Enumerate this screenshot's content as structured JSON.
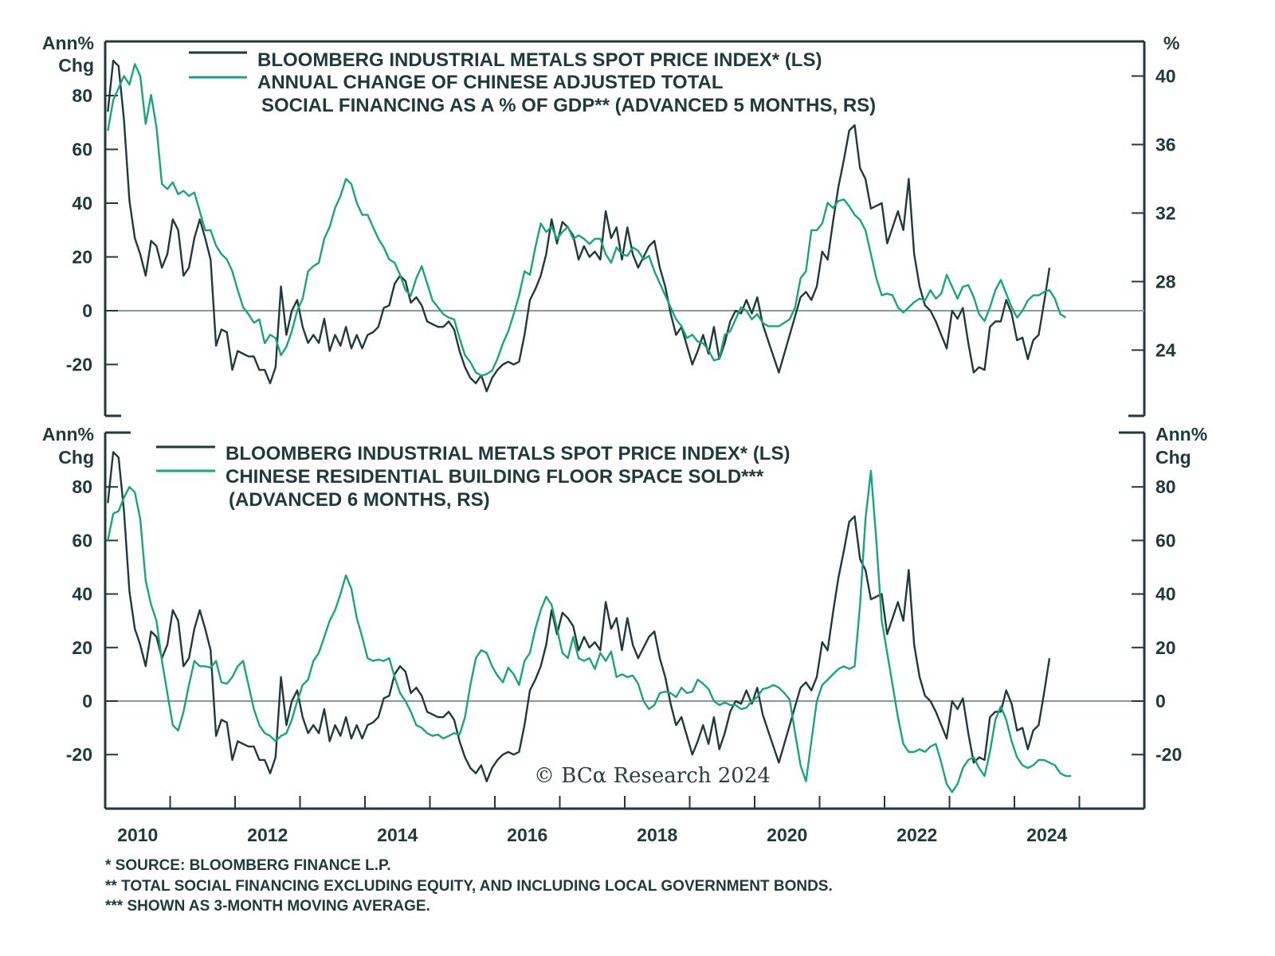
{
  "colors": {
    "metals": "#1f3a3d",
    "green": "#1ba37c",
    "zero_line": "#8a9a9a",
    "axis": "#1f3a3d"
  },
  "chart_data": [
    {
      "type": "line",
      "left_axis_label": [
        "Ann%",
        "Chg"
      ],
      "right_axis_label": [
        "%"
      ],
      "left_ylim": [
        -35,
        100
      ],
      "right_ylim": [
        21.8,
        42.6
      ],
      "left_ticks": [
        "80",
        "60",
        "40",
        "20",
        "0",
        "-20"
      ],
      "right_ticks": [
        "40",
        "36",
        "32",
        "28",
        "24"
      ],
      "legend": [
        [
          "BLOOMBERG INDUSTRIAL METALS SPOT PRICE INDEX* (LS)"
        ],
        [
          "ANNUAL CHANGE OF CHINESE ADJUSTED TOTAL",
          " SOCIAL FINANCING AS A % OF GDP** (ADVANCED 5 MONTHS, RS)"
        ]
      ],
      "legend_placement": "top",
      "zero_line": true,
      "series": [
        {
          "name": "BLOOMBERG INDUSTRIAL METALS SPOT PRICE INDEX* (LS)",
          "axis": "left",
          "start": "2010-01",
          "freq": "monthly",
          "values": [
            74,
            93,
            91,
            71,
            41,
            27,
            21,
            13,
            26,
            24,
            16,
            21,
            34,
            30,
            13,
            16,
            27,
            34,
            27,
            19,
            -13,
            -7,
            -8,
            -22,
            -15,
            -16,
            -17,
            -17,
            -22,
            -22,
            -27,
            -21,
            9,
            -9,
            0,
            4,
            -6,
            -12,
            -9,
            -12,
            -3,
            -15,
            -9,
            -13,
            -6,
            -14,
            -9,
            -14,
            -9,
            -8,
            -6,
            1,
            2,
            10,
            13,
            11,
            3,
            5,
            2,
            -4,
            -5,
            -6,
            -6,
            -4,
            -7,
            -15,
            -21,
            -25,
            -27,
            -24,
            -30,
            -25,
            -22,
            -20,
            -19,
            -20,
            -19,
            -9,
            4,
            8,
            13,
            21,
            34,
            25,
            33,
            31,
            28,
            19,
            24,
            20,
            22,
            19,
            37,
            27,
            31,
            19,
            31,
            21,
            16,
            20,
            24,
            26,
            16,
            9,
            -1,
            -9,
            -6,
            -13,
            -20,
            -15,
            -9,
            -16,
            -6,
            -18,
            -12,
            -4,
            0,
            -1,
            4,
            -1,
            5,
            -5,
            -11,
            -17,
            -23,
            -16,
            -9,
            -2,
            5,
            7,
            4,
            9,
            22,
            19,
            33,
            46,
            56,
            67,
            69,
            53,
            49,
            38,
            39,
            40,
            25,
            31,
            37,
            30,
            49,
            21,
            9,
            2,
            0,
            -4,
            -9,
            -14,
            0,
            -3,
            1,
            -12,
            -23,
            -21,
            -22,
            -6,
            -4,
            -4,
            4,
            -1,
            -11,
            -10,
            -18,
            -11,
            -9,
            3,
            16
          ]
        },
        {
          "name": "ANNUAL CHANGE OF CHINESE ADJUSTED TOTAL SOCIAL FINANCING AS A % OF GDP** (ADVANCED 5 MONTHS, RS)",
          "axis": "right",
          "start": "2010-01",
          "freq": "monthly",
          "values": [
            36.8,
            38.6,
            39.3,
            40.0,
            39.5,
            40.7,
            40.0,
            37.2,
            38.9,
            37.0,
            33.7,
            33.4,
            33.8,
            33.1,
            33.3,
            33.0,
            33.2,
            32.1,
            31.0,
            31.0,
            30.1,
            29.6,
            29.3,
            28.6,
            27.5,
            26.5,
            26.1,
            25.6,
            25.8,
            24.4,
            24.9,
            24.7,
            23.7,
            24.2,
            25.1,
            26.3,
            27.0,
            28.6,
            28.9,
            29.1,
            30.5,
            31.2,
            32.3,
            33.0,
            34.0,
            33.7,
            32.6,
            31.9,
            31.9,
            31.2,
            30.5,
            30.0,
            29.3,
            29.1,
            28.4,
            27.5,
            27.2,
            28.2,
            28.9,
            27.9,
            26.9,
            26.5,
            26.1,
            25.9,
            25.8,
            24.7,
            23.7,
            23.3,
            22.7,
            22.5,
            22.6,
            22.8,
            23.5,
            24.4,
            25.1,
            26.1,
            27.2,
            28.6,
            28.4,
            30.0,
            31.4,
            30.9,
            31.2,
            30.5,
            30.9,
            31.2,
            30.5,
            30.7,
            30.5,
            30.2,
            30.5,
            30.5,
            29.6,
            29.1,
            30.0,
            29.6,
            29.5,
            30.0,
            29.8,
            29.3,
            29.5,
            28.6,
            27.9,
            27.2,
            26.5,
            25.8,
            25.4,
            24.7,
            24.9,
            24.5,
            24.4,
            24.0,
            23.4,
            23.5,
            24.9,
            25.1,
            25.8,
            26.5,
            26.3,
            25.8,
            26.1,
            25.6,
            25.4,
            25.4,
            25.4,
            25.6,
            25.8,
            26.5,
            28.2,
            28.6,
            31.0,
            31.0,
            31.4,
            32.6,
            32.3,
            32.7,
            32.8,
            32.4,
            31.9,
            31.6,
            31.0,
            29.6,
            28.2,
            27.2,
            27.3,
            27.2,
            26.5,
            26.2,
            26.5,
            26.8,
            27.0,
            26.9,
            27.5,
            27.0,
            27.3,
            28.4,
            27.7,
            27.0,
            27.7,
            27.8,
            27.1,
            26.1,
            25.7,
            26.5,
            27.5,
            28.1,
            27.3,
            26.5,
            25.9,
            26.3,
            26.9,
            27.2,
            27.2,
            27.4,
            27.5,
            27.0,
            26.1,
            25.9
          ]
        }
      ]
    },
    {
      "type": "line",
      "left_axis_label": [
        "Ann%",
        "Chg"
      ],
      "right_axis_label": [
        "Ann%",
        "Chg"
      ],
      "left_ylim": [
        -35,
        100
      ],
      "right_ylim": [
        -35,
        100
      ],
      "left_ticks": [
        "80",
        "60",
        "40",
        "20",
        "0",
        "-20"
      ],
      "right_ticks": [
        "80",
        "60",
        "40",
        "20",
        "0",
        "-20"
      ],
      "legend": [
        [
          "BLOOMBERG INDUSTRIAL METALS SPOT PRICE INDEX* (LS)"
        ],
        [
          "CHINESE RESIDENTIAL BUILDING FLOOR SPACE SOLD***",
          "(ADVANCED 6 MONTHS, RS)"
        ]
      ],
      "legend_placement": "top",
      "zero_line": true,
      "x_tick_labels": [
        "2010",
        "2012",
        "2014",
        "2016",
        "2018",
        "2020",
        "2022",
        "2024"
      ],
      "xlim": [
        2010,
        2026
      ],
      "series": [
        {
          "name": "BLOOMBERG INDUSTRIAL METALS SPOT PRICE INDEX* (LS)",
          "axis": "left",
          "same_as": 0
        },
        {
          "name": "CHINESE RESIDENTIAL BUILDING FLOOR SPACE SOLD*** (ADVANCED 6 MONTHS, RS)",
          "axis": "right",
          "start": "2010-01",
          "freq": "monthly",
          "values": [
            60,
            70,
            71,
            76,
            80,
            78,
            68,
            45,
            36,
            30,
            15,
            3,
            -9,
            -11,
            -4,
            6,
            15,
            13,
            13,
            12.5,
            15,
            7,
            6.5,
            9,
            13,
            15,
            6,
            -3,
            -9,
            -12,
            -13,
            -15,
            -13,
            -12,
            -7,
            0,
            6,
            8,
            15,
            18,
            24,
            30,
            34,
            40,
            47,
            42,
            31,
            24,
            16,
            15,
            15.5,
            15,
            16,
            9,
            3,
            0,
            -4,
            -9,
            -10,
            -12,
            -13,
            -12.5,
            -14,
            -13,
            -12,
            -12.5,
            -6,
            6,
            16,
            19,
            18,
            13,
            9.5,
            7,
            12.5,
            10,
            6,
            15,
            18,
            27,
            34,
            39,
            36,
            27,
            18,
            16,
            24,
            16,
            15,
            16,
            12,
            18,
            15,
            18.5,
            9,
            10,
            9,
            9.5,
            6.5,
            0,
            -3,
            -1.5,
            3,
            3.5,
            3,
            1.5,
            5,
            3,
            3.5,
            8,
            6.5,
            4.5,
            0,
            -1.5,
            -0.5,
            -1.5,
            -1.5,
            -3,
            -2.5,
            0,
            1.5,
            4.5,
            5,
            6,
            5,
            3,
            0.5,
            -12,
            -24,
            -30,
            -15,
            0,
            6,
            8,
            10,
            12,
            13,
            12,
            13,
            36,
            68,
            86,
            60,
            30,
            18,
            6,
            -6,
            -16,
            -19,
            -19,
            -18,
            -19,
            -17,
            -16,
            -23,
            -31,
            -34,
            -31,
            -25,
            -22,
            -21,
            -25,
            -28,
            -19,
            -7,
            -2,
            -7,
            -15,
            -21,
            -24,
            -25,
            -24,
            -22,
            -22,
            -23,
            -24,
            -27,
            -28,
            -28
          ]
        }
      ]
    }
  ],
  "watermark": "© BCα Research 2024",
  "footnotes": [
    "* SOURCE: BLOOMBERG FINANCE L.P.",
    "** TOTAL SOCIAL FINANCING EXCLUDING EQUITY, AND INCLUDING LOCAL GOVERNMENT BONDS.",
    "*** SHOWN AS 3-MONTH MOVING AVERAGE."
  ]
}
